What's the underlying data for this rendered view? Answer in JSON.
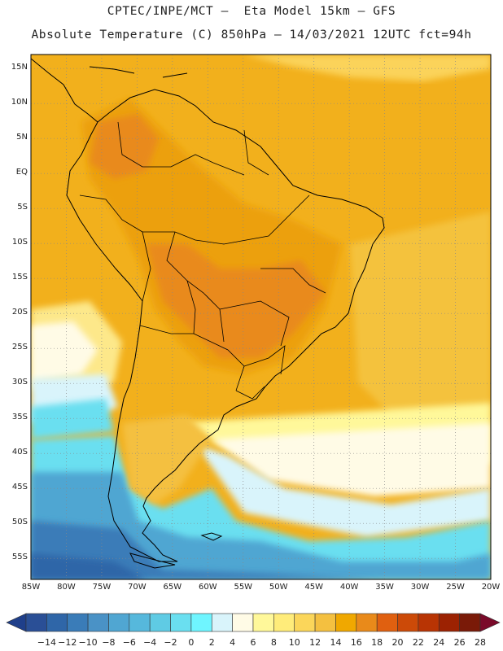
{
  "title_line1": "CPTEC/INPE/MCT –  Eta Model 15km – GFS",
  "title_line2": "Absolute Temperature (C) 850hPa – 14/03/2021 12UTC fct=94h",
  "lat_labels": [
    "15N",
    "10N",
    "5N",
    "EQ",
    "5S",
    "10S",
    "15S",
    "20S",
    "25S",
    "30S",
    "35S",
    "40S",
    "45S",
    "50S",
    "55S"
  ],
  "lon_labels": [
    "85W",
    "80W",
    "75W",
    "70W",
    "65W",
    "60W",
    "55W",
    "50W",
    "45W",
    "40W",
    "35W",
    "30W",
    "25W",
    "20W"
  ],
  "colorbar": {
    "labels": [
      "-14",
      "-12",
      "-10",
      "-8",
      "-6",
      "-4",
      "-2",
      "0",
      "2",
      "4",
      "6",
      "8",
      "10",
      "12",
      "14",
      "16",
      "18",
      "20",
      "22",
      "24",
      "26",
      "28"
    ],
    "colors": [
      "#2a4f96",
      "#2f66a8",
      "#3a7cb8",
      "#4a92c6",
      "#50a6d2",
      "#56b8dc",
      "#5fcbe4",
      "#6adff0",
      "#6ff5ff",
      "#d9f4fb",
      "#fffbe6",
      "#fff89a",
      "#ffec7a",
      "#fbd65a",
      "#f4c040",
      "#f0a800",
      "#e98a1a",
      "#e06010",
      "#cc4a08",
      "#b83404",
      "#9c2202",
      "#7a1a08"
    ],
    "under_color": "#1f3f8a",
    "over_color": "#7a0a2a"
  },
  "map": {
    "lon_range": [
      -85,
      -20
    ],
    "lat_range": [
      -58,
      17
    ],
    "region": "South America",
    "grid": "dotted"
  }
}
